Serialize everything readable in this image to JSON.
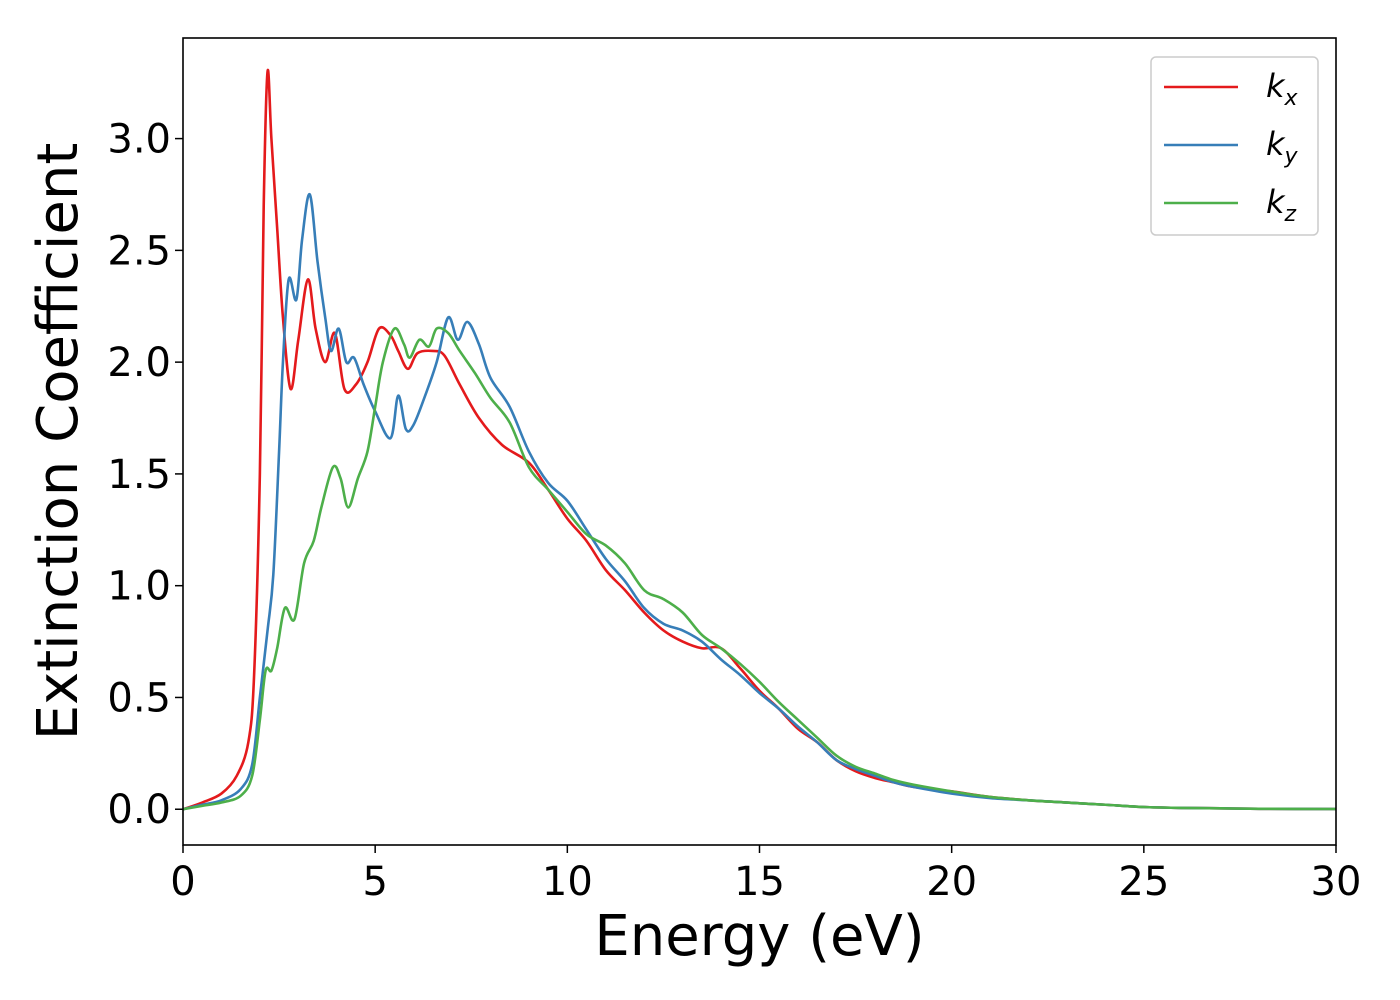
{
  "chart_data": {
    "type": "line",
    "title": "",
    "xlabel": "Energy (eV)",
    "ylabel": "Extinction Coefficient",
    "xlim": [
      0,
      30
    ],
    "ylim": [
      -0.16,
      3.45
    ],
    "xticks": [
      0,
      5,
      10,
      15,
      20,
      25,
      30
    ],
    "xtick_labels": [
      "0",
      "5",
      "10",
      "15",
      "20",
      "25",
      "30"
    ],
    "yticks": [
      0.0,
      0.5,
      1.0,
      1.5,
      2.0,
      2.5,
      3.0
    ],
    "ytick_labels": [
      "0.0",
      "0.5",
      "1.0",
      "1.5",
      "2.0",
      "2.5",
      "3.0"
    ],
    "grid": false,
    "legend": {
      "position": "top-right",
      "entries": [
        {
          "base": "k",
          "sub": "x",
          "color": "#e41a1c"
        },
        {
          "base": "k",
          "sub": "y",
          "color": "#377eb8"
        },
        {
          "base": "k",
          "sub": "z",
          "color": "#4daf4a"
        }
      ]
    },
    "series": [
      {
        "color": "#e41a1c",
        "points": [
          [
            0,
            0
          ],
          [
            0.5,
            0.03
          ],
          [
            1.0,
            0.07
          ],
          [
            1.4,
            0.15
          ],
          [
            1.7,
            0.3
          ],
          [
            1.85,
            0.6
          ],
          [
            2.0,
            1.5
          ],
          [
            2.1,
            2.7
          ],
          [
            2.2,
            3.3
          ],
          [
            2.3,
            3.0
          ],
          [
            2.45,
            2.6
          ],
          [
            2.6,
            2.2
          ],
          [
            2.8,
            1.88
          ],
          [
            3.0,
            2.1
          ],
          [
            3.25,
            2.37
          ],
          [
            3.45,
            2.15
          ],
          [
            3.7,
            2.0
          ],
          [
            3.95,
            2.13
          ],
          [
            4.2,
            1.88
          ],
          [
            4.5,
            1.9
          ],
          [
            4.8,
            2.0
          ],
          [
            5.1,
            2.15
          ],
          [
            5.4,
            2.12
          ],
          [
            5.6,
            2.05
          ],
          [
            5.85,
            1.97
          ],
          [
            6.1,
            2.04
          ],
          [
            6.5,
            2.05
          ],
          [
            6.8,
            2.03
          ],
          [
            7.2,
            1.9
          ],
          [
            7.7,
            1.75
          ],
          [
            8.3,
            1.63
          ],
          [
            9.0,
            1.55
          ],
          [
            9.5,
            1.43
          ],
          [
            10.0,
            1.3
          ],
          [
            10.5,
            1.2
          ],
          [
            11.0,
            1.07
          ],
          [
            11.5,
            0.98
          ],
          [
            12.0,
            0.88
          ],
          [
            12.5,
            0.8
          ],
          [
            13.0,
            0.75
          ],
          [
            13.5,
            0.72
          ],
          [
            14.0,
            0.72
          ],
          [
            14.5,
            0.63
          ],
          [
            15.0,
            0.53
          ],
          [
            15.5,
            0.45
          ],
          [
            16.0,
            0.36
          ],
          [
            16.5,
            0.3
          ],
          [
            17.0,
            0.22
          ],
          [
            17.5,
            0.17
          ],
          [
            18.0,
            0.14
          ],
          [
            18.5,
            0.12
          ],
          [
            19.0,
            0.1
          ],
          [
            20.0,
            0.08
          ],
          [
            21.0,
            0.055
          ],
          [
            22.0,
            0.04
          ],
          [
            23.0,
            0.03
          ],
          [
            24.0,
            0.02
          ],
          [
            25.0,
            0.01
          ],
          [
            26.0,
            0.006
          ],
          [
            27.0,
            0.004
          ],
          [
            28.0,
            0.002
          ],
          [
            30.0,
            0.001
          ]
        ]
      },
      {
        "color": "#377eb8",
        "points": [
          [
            0,
            0
          ],
          [
            0.5,
            0.02
          ],
          [
            1.0,
            0.04
          ],
          [
            1.5,
            0.09
          ],
          [
            1.8,
            0.2
          ],
          [
            2.0,
            0.5
          ],
          [
            2.2,
            0.8
          ],
          [
            2.35,
            1.05
          ],
          [
            2.5,
            1.6
          ],
          [
            2.6,
            2.0
          ],
          [
            2.75,
            2.37
          ],
          [
            2.95,
            2.28
          ],
          [
            3.1,
            2.55
          ],
          [
            3.3,
            2.75
          ],
          [
            3.5,
            2.45
          ],
          [
            3.7,
            2.2
          ],
          [
            3.85,
            2.05
          ],
          [
            4.05,
            2.15
          ],
          [
            4.25,
            2.0
          ],
          [
            4.45,
            2.02
          ],
          [
            4.7,
            1.9
          ],
          [
            5.0,
            1.78
          ],
          [
            5.4,
            1.66
          ],
          [
            5.6,
            1.85
          ],
          [
            5.8,
            1.7
          ],
          [
            6.0,
            1.72
          ],
          [
            6.3,
            1.85
          ],
          [
            6.6,
            2.0
          ],
          [
            6.9,
            2.2
          ],
          [
            7.15,
            2.1
          ],
          [
            7.4,
            2.18
          ],
          [
            7.7,
            2.08
          ],
          [
            8.0,
            1.93
          ],
          [
            8.5,
            1.8
          ],
          [
            9.0,
            1.6
          ],
          [
            9.5,
            1.46
          ],
          [
            10.0,
            1.38
          ],
          [
            10.5,
            1.25
          ],
          [
            11.0,
            1.12
          ],
          [
            11.5,
            1.02
          ],
          [
            12.0,
            0.9
          ],
          [
            12.5,
            0.83
          ],
          [
            13.0,
            0.8
          ],
          [
            13.5,
            0.75
          ],
          [
            14.0,
            0.67
          ],
          [
            14.5,
            0.6
          ],
          [
            15.0,
            0.52
          ],
          [
            15.5,
            0.45
          ],
          [
            16.0,
            0.37
          ],
          [
            16.5,
            0.3
          ],
          [
            17.0,
            0.22
          ],
          [
            17.5,
            0.18
          ],
          [
            18.0,
            0.15
          ],
          [
            18.5,
            0.12
          ],
          [
            19.0,
            0.1
          ],
          [
            20.0,
            0.07
          ],
          [
            21.0,
            0.05
          ],
          [
            22.0,
            0.04
          ],
          [
            23.0,
            0.03
          ],
          [
            24.0,
            0.02
          ],
          [
            25.0,
            0.01
          ],
          [
            26.0,
            0.006
          ],
          [
            27.0,
            0.004
          ],
          [
            28.0,
            0.002
          ],
          [
            30.0,
            0.001
          ]
        ]
      },
      {
        "color": "#4daf4a",
        "points": [
          [
            0,
            0
          ],
          [
            0.5,
            0.015
          ],
          [
            1.0,
            0.03
          ],
          [
            1.5,
            0.06
          ],
          [
            1.8,
            0.15
          ],
          [
            2.0,
            0.4
          ],
          [
            2.15,
            0.62
          ],
          [
            2.3,
            0.62
          ],
          [
            2.45,
            0.72
          ],
          [
            2.65,
            0.9
          ],
          [
            2.9,
            0.85
          ],
          [
            3.15,
            1.1
          ],
          [
            3.4,
            1.2
          ],
          [
            3.6,
            1.35
          ],
          [
            3.9,
            1.53
          ],
          [
            4.1,
            1.48
          ],
          [
            4.3,
            1.35
          ],
          [
            4.55,
            1.48
          ],
          [
            4.8,
            1.6
          ],
          [
            5.0,
            1.8
          ],
          [
            5.2,
            2.0
          ],
          [
            5.5,
            2.15
          ],
          [
            5.75,
            2.08
          ],
          [
            5.9,
            2.02
          ],
          [
            6.15,
            2.1
          ],
          [
            6.4,
            2.07
          ],
          [
            6.6,
            2.15
          ],
          [
            6.9,
            2.13
          ],
          [
            7.2,
            2.05
          ],
          [
            7.6,
            1.95
          ],
          [
            8.0,
            1.84
          ],
          [
            8.5,
            1.73
          ],
          [
            9.0,
            1.53
          ],
          [
            9.5,
            1.43
          ],
          [
            10.0,
            1.33
          ],
          [
            10.5,
            1.23
          ],
          [
            11.0,
            1.18
          ],
          [
            11.5,
            1.1
          ],
          [
            12.0,
            0.98
          ],
          [
            12.5,
            0.94
          ],
          [
            13.0,
            0.88
          ],
          [
            13.5,
            0.78
          ],
          [
            14.0,
            0.72
          ],
          [
            14.5,
            0.65
          ],
          [
            15.0,
            0.57
          ],
          [
            15.5,
            0.48
          ],
          [
            16.0,
            0.4
          ],
          [
            16.5,
            0.32
          ],
          [
            17.0,
            0.24
          ],
          [
            17.5,
            0.19
          ],
          [
            18.0,
            0.16
          ],
          [
            18.5,
            0.13
          ],
          [
            19.0,
            0.11
          ],
          [
            20.0,
            0.08
          ],
          [
            21.0,
            0.055
          ],
          [
            22.0,
            0.04
          ],
          [
            23.0,
            0.03
          ],
          [
            24.0,
            0.02
          ],
          [
            25.0,
            0.01
          ],
          [
            26.0,
            0.006
          ],
          [
            27.0,
            0.004
          ],
          [
            28.0,
            0.002
          ],
          [
            30.0,
            0.001
          ]
        ]
      }
    ]
  }
}
